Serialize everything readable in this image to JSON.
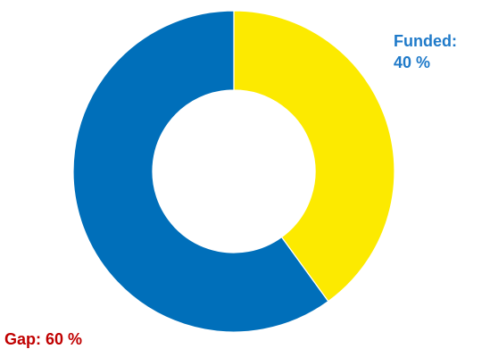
{
  "chart_data": {
    "type": "pie",
    "title": "",
    "style": "donut",
    "slices": [
      {
        "name": "Funded",
        "value": 40,
        "label_line1": "Funded:",
        "label_line2": "40 %",
        "color": "#fcea00",
        "label_color": "#1f7ac9"
      },
      {
        "name": "Gap",
        "value": 60,
        "label_line1": "Gap: 60 %",
        "label_line2": "",
        "color": "#006fba",
        "label_color": "#c00000"
      }
    ],
    "start_angle": "top",
    "direction": "clockwise",
    "legend": "none"
  }
}
